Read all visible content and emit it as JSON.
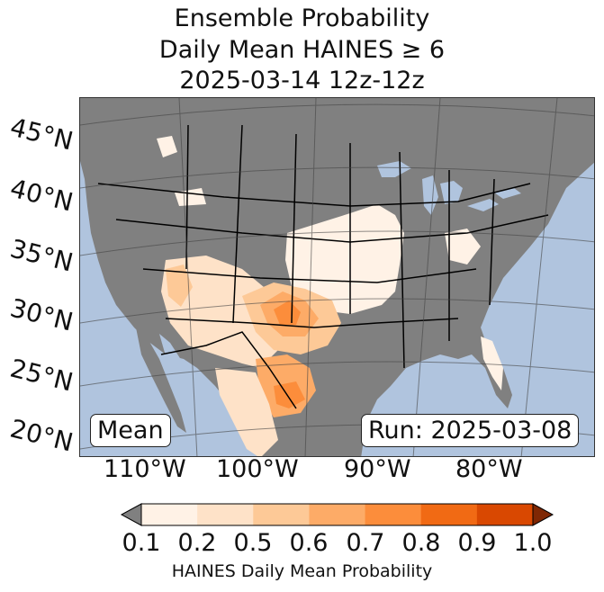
{
  "title": {
    "line1": "Ensemble Probability",
    "line2": "Daily Mean HAINES ≥ 6",
    "line3": "2025-03-14 12z-12z"
  },
  "map": {
    "latitude_labels": [
      "45°N",
      "40°N",
      "35°N",
      "30°N",
      "25°N",
      "20°N"
    ],
    "longitude_labels": [
      "110°W",
      "100°W",
      "90°W",
      "80°W"
    ],
    "ocean_color": "#b0c4de",
    "land_color": "#808080",
    "border_color": "#000000",
    "left_box": "Mean",
    "right_box": "Run: 2025-03-08"
  },
  "colorbar": {
    "ticks": [
      "0.1",
      "0.2",
      "0.5",
      "0.6",
      "0.7",
      "0.8",
      "0.9",
      "1.0"
    ],
    "colors": [
      "#fff2e6",
      "#fee2c8",
      "#fdc997",
      "#fdab67",
      "#fc8d3b",
      "#f16a14",
      "#d94801"
    ],
    "under_color": "#808080",
    "over_color": "#7f2704",
    "label": "HAINES Daily Mean Probability"
  },
  "probability_regions": [
    {
      "name": "southern-plains-west-texas",
      "level": 4
    },
    {
      "name": "texas-panhandle-oklahoma",
      "level": 5
    },
    {
      "name": "south-texas-mexico",
      "level": 5
    },
    {
      "name": "arizona-new-mexico",
      "level": 3
    },
    {
      "name": "central-plains",
      "level": 1
    },
    {
      "name": "mexico-interior",
      "level": 2
    },
    {
      "name": "florida",
      "level": 1
    },
    {
      "name": "ohio-valley",
      "level": 1
    },
    {
      "name": "northwest-patches",
      "level": 1
    }
  ]
}
